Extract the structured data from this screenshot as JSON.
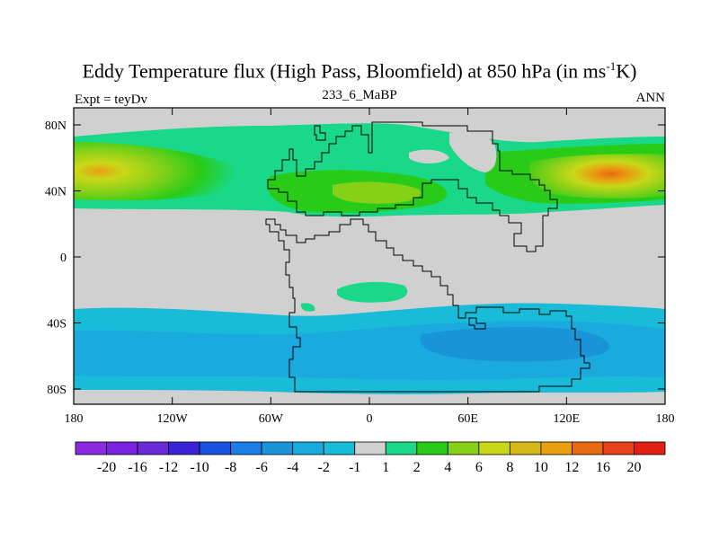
{
  "header": {
    "title_main": "Eddy Temperature flux (High Pass, Bloomfield) at 850 hPa (in ms",
    "title_sup": "-1",
    "title_end": "K)",
    "expt_label": "Expt = teyDv",
    "period_label": "233_6_MaBP",
    "season_label": "ANN"
  },
  "map": {
    "background_color": "#d0d0d0",
    "lat_ticks": [
      {
        "value": 80,
        "label": "80N"
      },
      {
        "value": 40,
        "label": "40N"
      },
      {
        "value": 0,
        "label": "0"
      },
      {
        "value": -40,
        "label": "40S"
      },
      {
        "value": -80,
        "label": "80S"
      }
    ],
    "lon_ticks": [
      {
        "value": -180,
        "label": "180"
      },
      {
        "value": -120,
        "label": "120W"
      },
      {
        "value": -60,
        "label": "60W"
      },
      {
        "value": 0,
        "label": "0"
      },
      {
        "value": 60,
        "label": "60E"
      },
      {
        "value": 120,
        "label": "120E"
      },
      {
        "value": 180,
        "label": "180"
      }
    ]
  },
  "colorbar": {
    "colors": [
      "#8a2be2",
      "#7a22e0",
      "#6a2ad8",
      "#3a22d8",
      "#1a52e0",
      "#1a7ee6",
      "#1a94d8",
      "#1aaade",
      "#18bcd8",
      "#d0d0d0",
      "#1ad88a",
      "#28cc18",
      "#86d018",
      "#c8d818",
      "#d8b818",
      "#e8a010",
      "#e86a10",
      "#e8401a",
      "#e02010"
    ],
    "labels": [
      "-20",
      "-16",
      "-12",
      "-10",
      "-8",
      "-6",
      "-4",
      "-2",
      "-1",
      "1",
      "2",
      "4",
      "6",
      "8",
      "10",
      "12",
      "16",
      "20"
    ]
  }
}
